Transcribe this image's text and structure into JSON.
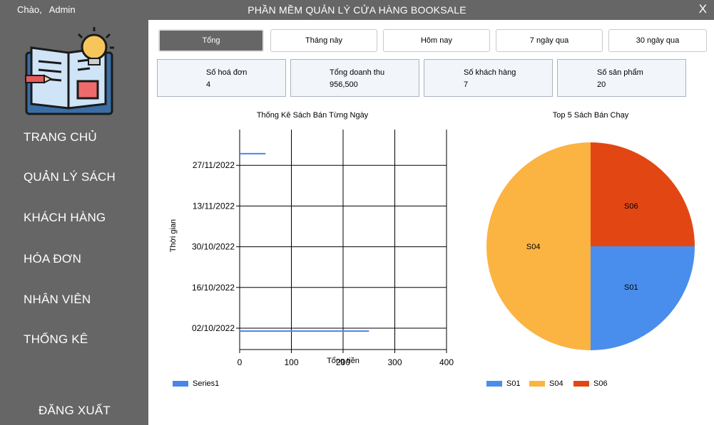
{
  "window": {
    "greeting": "Chào,",
    "user": "Admin",
    "title": "PHẦN MỀM QUẢN LÝ CỬA HÀNG BOOKSALE",
    "close": "X"
  },
  "sidebar": {
    "logo_icon": "book-lightbulb-icon",
    "items": [
      {
        "label": "TRANG CHỦ"
      },
      {
        "label": "QUẢN LÝ SÁCH"
      },
      {
        "label": "KHÁCH HÀNG"
      },
      {
        "label": "HÓA ĐƠN"
      },
      {
        "label": "NHÂN VIÊN"
      },
      {
        "label": "THỐNG KÊ"
      }
    ],
    "logout": "ĐĂNG  XUẤT"
  },
  "tabs": [
    {
      "label": "Tổng",
      "active": true
    },
    {
      "label": "Tháng này",
      "active": false
    },
    {
      "label": "Hôm nay",
      "active": false
    },
    {
      "label": "7 ngày qua",
      "active": false
    },
    {
      "label": "30 ngày qua",
      "active": false
    }
  ],
  "stats": [
    {
      "label": "Số hoá đơn",
      "value": "4"
    },
    {
      "label": "Tổng doanh thu",
      "value": "956,500"
    },
    {
      "label": "Số khách hàng",
      "value": "7"
    },
    {
      "label": "Số sản phẩm",
      "value": "20"
    }
  ],
  "chart_data": [
    {
      "type": "bar",
      "orientation": "horizontal",
      "title": "Thống Kê Sách Bán Từng Ngày",
      "xlabel": "Tổng tiền",
      "ylabel": "Thời gian",
      "xlim": [
        0,
        400
      ],
      "xticks": [
        0,
        100,
        200,
        300,
        400
      ],
      "yticks": [
        "02/10/2022",
        "16/10/2022",
        "30/10/2022",
        "13/11/2022",
        "27/11/2022"
      ],
      "grid": true,
      "legend_position": "bottom-left",
      "series": [
        {
          "name": "Series1",
          "color": "#4a86e8",
          "points": [
            {
              "date": "01/10/2022",
              "value": 250
            },
            {
              "date": "01/12/2022",
              "value": 50
            }
          ]
        }
      ]
    },
    {
      "type": "pie",
      "title": "Top 5 Sách Bán Chạy",
      "legend_position": "bottom",
      "slices": [
        {
          "label": "S01",
          "value": 1,
          "color": "#4a8eed"
        },
        {
          "label": "S04",
          "value": 2,
          "color": "#fbb342"
        },
        {
          "label": "S06",
          "value": 1,
          "color": "#e24713"
        }
      ]
    }
  ]
}
